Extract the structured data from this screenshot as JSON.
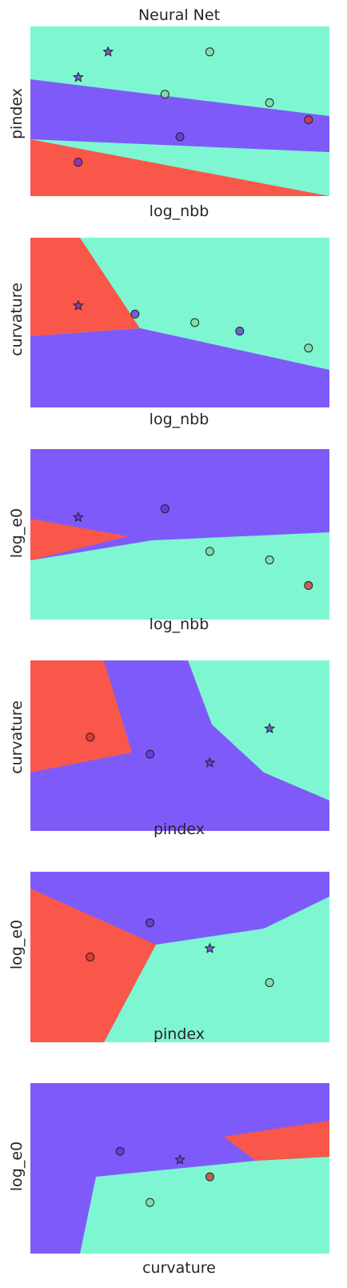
{
  "figure_title": "Neural Net",
  "colors": {
    "red_region": "#f9574a",
    "purple_region": "#7e5bf9",
    "green_region": "#7ef6d2",
    "red_point": "#d7302a",
    "purple_point": "#6a2fd6",
    "green_point": "#7fd6a4",
    "edge": "#222222"
  },
  "chart_data": [
    {
      "type": "scatter",
      "subtype": "decision-boundary",
      "xlabel": "log_nbb",
      "ylabel": "pindex",
      "grid": false,
      "legend": "none",
      "classes": [
        "red",
        "purple",
        "green"
      ],
      "markers": [
        "circle",
        "star"
      ],
      "points_sample": [
        [
          0.16,
          0.7,
          "purple",
          "star"
        ],
        [
          0.26,
          0.85,
          "purple",
          "star"
        ],
        [
          0.45,
          0.6,
          "green",
          "circle"
        ],
        [
          0.6,
          0.85,
          "green",
          "circle"
        ],
        [
          0.8,
          0.55,
          "green",
          "circle"
        ],
        [
          0.93,
          0.45,
          "red",
          "circle"
        ],
        [
          0.5,
          0.35,
          "purple",
          "circle"
        ],
        [
          0.16,
          0.2,
          "purple",
          "circle"
        ]
      ]
    },
    {
      "type": "scatter",
      "subtype": "decision-boundary",
      "xlabel": "log_nbb",
      "ylabel": "curvature",
      "grid": false,
      "legend": "none",
      "classes": [
        "red",
        "purple",
        "green"
      ],
      "markers": [
        "circle",
        "star"
      ],
      "points_sample": [
        [
          0.16,
          0.6,
          "purple",
          "star"
        ],
        [
          0.35,
          0.55,
          "purple",
          "circle"
        ],
        [
          0.55,
          0.5,
          "green",
          "circle"
        ],
        [
          0.7,
          0.45,
          "purple",
          "circle"
        ],
        [
          0.93,
          0.35,
          "green",
          "circle"
        ]
      ]
    },
    {
      "type": "scatter",
      "subtype": "decision-boundary",
      "xlabel": "log_nbb",
      "ylabel": "log_e0",
      "grid": false,
      "legend": "none",
      "classes": [
        "red",
        "purple",
        "green"
      ],
      "markers": [
        "circle",
        "star"
      ],
      "points_sample": [
        [
          0.16,
          0.6,
          "purple",
          "star"
        ],
        [
          0.45,
          0.65,
          "purple",
          "circle"
        ],
        [
          0.6,
          0.4,
          "green",
          "circle"
        ],
        [
          0.8,
          0.35,
          "green",
          "circle"
        ],
        [
          0.93,
          0.2,
          "red",
          "circle"
        ]
      ]
    },
    {
      "type": "scatter",
      "subtype": "decision-boundary",
      "xlabel": "pindex",
      "ylabel": "curvature",
      "grid": false,
      "legend": "none",
      "classes": [
        "red",
        "purple",
        "green"
      ],
      "markers": [
        "circle",
        "star"
      ],
      "points_sample": [
        [
          0.2,
          0.55,
          "red",
          "circle"
        ],
        [
          0.4,
          0.45,
          "purple",
          "circle"
        ],
        [
          0.6,
          0.4,
          "purple",
          "star"
        ],
        [
          0.8,
          0.6,
          "purple",
          "star"
        ]
      ]
    },
    {
      "type": "scatter",
      "subtype": "decision-boundary",
      "xlabel": "pindex",
      "ylabel": "log_e0",
      "grid": false,
      "legend": "none",
      "classes": [
        "red",
        "purple",
        "green"
      ],
      "markers": [
        "circle",
        "star"
      ],
      "points_sample": [
        [
          0.2,
          0.5,
          "red",
          "circle"
        ],
        [
          0.4,
          0.7,
          "purple",
          "circle"
        ],
        [
          0.6,
          0.55,
          "purple",
          "star"
        ],
        [
          0.8,
          0.35,
          "green",
          "circle"
        ]
      ]
    },
    {
      "type": "scatter",
      "subtype": "decision-boundary",
      "xlabel": "curvature",
      "ylabel": "log_e0",
      "grid": false,
      "legend": "none",
      "classes": [
        "red",
        "purple",
        "green"
      ],
      "markers": [
        "circle",
        "star"
      ],
      "points_sample": [
        [
          0.3,
          0.6,
          "purple",
          "circle"
        ],
        [
          0.5,
          0.55,
          "purple",
          "star"
        ],
        [
          0.6,
          0.45,
          "red",
          "circle"
        ],
        [
          0.4,
          0.3,
          "green",
          "circle"
        ]
      ]
    }
  ]
}
